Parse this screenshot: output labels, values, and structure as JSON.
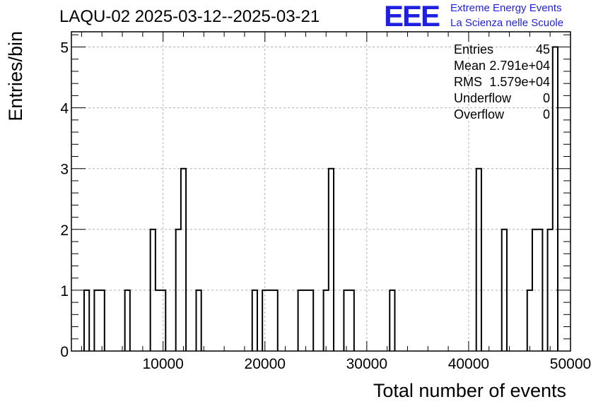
{
  "chart_data": {
    "type": "bar",
    "title": "LAQU-02 2025-03-12--2025-03-21",
    "xlabel": "Total number of events",
    "ylabel": "Entries/bin",
    "xlim": [
      1000,
      50000
    ],
    "ylim": [
      0,
      5.25
    ],
    "grid": true,
    "x_ticks": [
      "10000",
      "20000",
      "30000",
      "40000",
      "50000"
    ],
    "y_ticks": [
      "0",
      "1",
      "2",
      "3",
      "4",
      "5"
    ],
    "bin_width": 500,
    "bins": [
      {
        "x0": 2250,
        "x1": 2750,
        "value": 1
      },
      {
        "x0": 3250,
        "x1": 4250,
        "value": 1
      },
      {
        "x0": 6250,
        "x1": 6750,
        "value": 1
      },
      {
        "x0": 8750,
        "x1": 9250,
        "value": 2
      },
      {
        "x0": 9250,
        "x1": 10250,
        "value": 1
      },
      {
        "x0": 11250,
        "x1": 11750,
        "value": 2
      },
      {
        "x0": 11750,
        "x1": 12250,
        "value": 3
      },
      {
        "x0": 13250,
        "x1": 13750,
        "value": 1
      },
      {
        "x0": 18750,
        "x1": 19250,
        "value": 1
      },
      {
        "x0": 19750,
        "x1": 21250,
        "value": 1
      },
      {
        "x0": 23250,
        "x1": 24750,
        "value": 1
      },
      {
        "x0": 25750,
        "x1": 26250,
        "value": 1
      },
      {
        "x0": 26250,
        "x1": 26750,
        "value": 3
      },
      {
        "x0": 27750,
        "x1": 28750,
        "value": 1
      },
      {
        "x0": 32250,
        "x1": 32750,
        "value": 1
      },
      {
        "x0": 40750,
        "x1": 41250,
        "value": 3
      },
      {
        "x0": 43250,
        "x1": 43750,
        "value": 2
      },
      {
        "x0": 45750,
        "x1": 46250,
        "value": 1
      },
      {
        "x0": 46250,
        "x1": 47250,
        "value": 2
      },
      {
        "x0": 47750,
        "x1": 48250,
        "value": 2
      },
      {
        "x0": 48250,
        "x1": 48750,
        "value": 5
      }
    ],
    "stats": [
      {
        "label": "Entries",
        "value": "45"
      },
      {
        "label": "Mean",
        "value": "2.791e+04"
      },
      {
        "label": "RMS",
        "value": "1.579e+04"
      },
      {
        "label": "Underflow",
        "value": "0"
      },
      {
        "label": "Overflow",
        "value": "0"
      }
    ]
  },
  "logo": {
    "mark": "EEE",
    "line1": "Extreme Energy Events",
    "line2": "La Scienza nelle Scuole",
    "color": "#1f1fe0"
  }
}
